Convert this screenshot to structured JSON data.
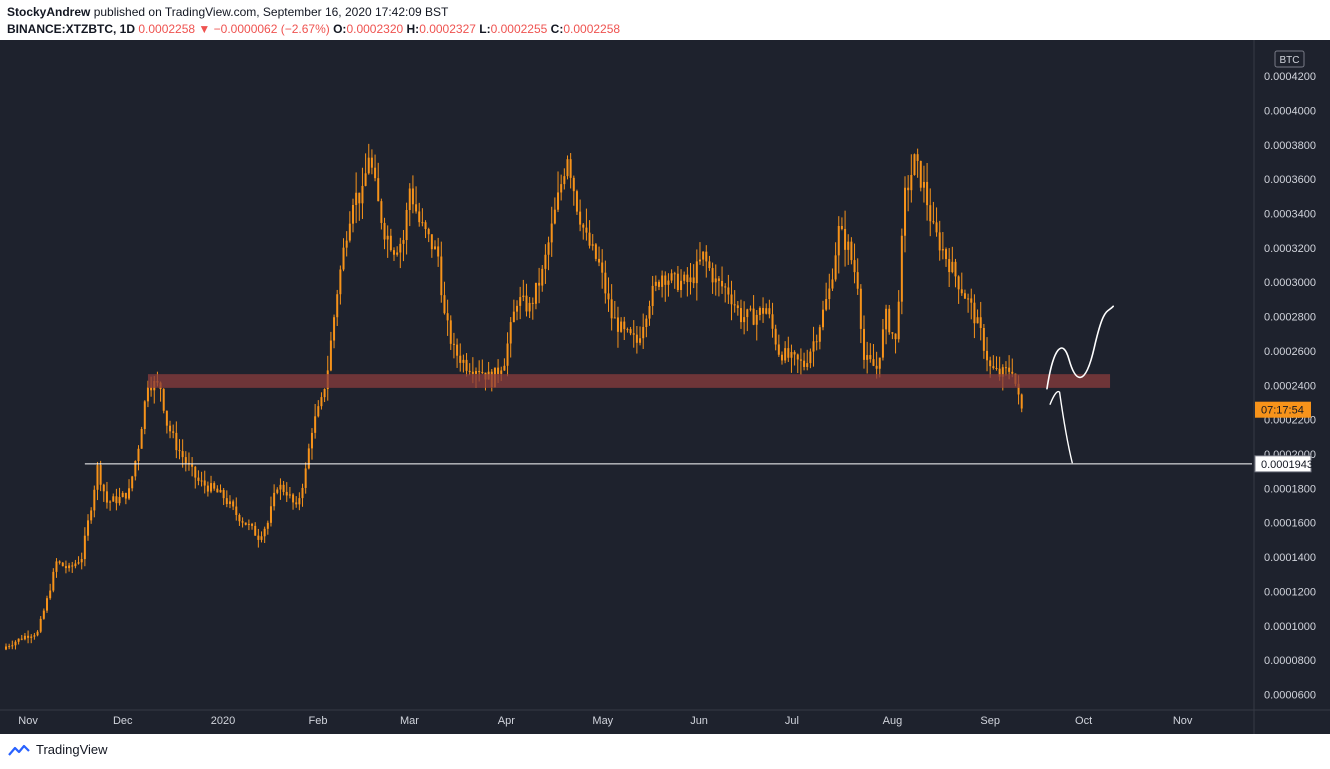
{
  "header": {
    "author": "StockyAndrew",
    "published_text": "published on TradingView.com, September 16, 2020 17:42:09 BST",
    "symbol": "BINANCE:XTZBTC, 1D",
    "last_price": "0.0002258",
    "change_arrow": "▼",
    "change": "−0.0000062 (−2.67%)",
    "o_label": "O:",
    "o_value": "0.0002320",
    "h_label": "H:",
    "h_value": "0.0002327",
    "l_label": "L:",
    "l_value": "0.0002255",
    "c_label": "C:",
    "c_value": "0.0002258"
  },
  "footer": {
    "brand": "TradingView"
  },
  "colors": {
    "background": "#1e222d",
    "candle": "#f7931a",
    "zone": "#8a3c3c",
    "line": "#ffffff",
    "axis_text": "#d1d4dc",
    "countdown_bg": "#f7931a"
  },
  "chart_data": {
    "type": "candlestick",
    "currency_label": "BTC",
    "y_tick_labels": [
      "0.0000600",
      "0.0000800",
      "0.0001000",
      "0.0001200",
      "0.0001400",
      "0.0001600",
      "0.0001800",
      "0.0002000",
      "0.0002200",
      "0.0002400",
      "0.0002600",
      "0.0002800",
      "0.0003000",
      "0.0003200",
      "0.0003400",
      "0.0003600",
      "0.0003800",
      "0.0004000",
      "0.0004200"
    ],
    "y_ticks": [
      6e-05,
      8e-05,
      0.0001,
      0.00012,
      0.00014,
      0.00016,
      0.00018,
      0.0002,
      0.00022,
      0.00024,
      0.00026,
      0.00028,
      0.0003,
      0.00032,
      0.00034,
      0.00036,
      0.00038,
      0.0004,
      0.00042
    ],
    "ylim": [
      5.45e-05,
      0.0004375
    ],
    "x_tick_labels": [
      "Nov",
      "Dec",
      "2020",
      "Feb",
      "Mar",
      "Apr",
      "May",
      "Jun",
      "Jul",
      "Aug",
      "Sep",
      "Oct",
      "Nov"
    ],
    "x_tick_dates": [
      "2019-11-01",
      "2019-12-01",
      "2020-01-01",
      "2020-02-01",
      "2020-03-01",
      "2020-04-01",
      "2020-05-01",
      "2020-06-01",
      "2020-07-01",
      "2020-08-01",
      "2020-09-01",
      "2020-10-01",
      "2020-11-01"
    ],
    "xlim": [
      "2019-10-30",
      "2020-11-28"
    ],
    "close_series": [
      {
        "date": "2019-10-30",
        "close": 8.8e-05
      },
      {
        "date": "2019-11-05",
        "close": 9.4e-05
      },
      {
        "date": "2019-11-09",
        "close": 9.6e-05
      },
      {
        "date": "2019-11-12",
        "close": 0.000115
      },
      {
        "date": "2019-11-15",
        "close": 0.000137
      },
      {
        "date": "2019-11-19",
        "close": 0.000133
      },
      {
        "date": "2019-11-23",
        "close": 0.00014
      },
      {
        "date": "2019-11-26",
        "close": 0.00017
      },
      {
        "date": "2019-11-28",
        "close": 0.000192
      },
      {
        "date": "2019-12-01",
        "close": 0.000172
      },
      {
        "date": "2019-12-05",
        "close": 0.000174
      },
      {
        "date": "2019-12-08",
        "close": 0.000178
      },
      {
        "date": "2019-12-11",
        "close": 0.000205
      },
      {
        "date": "2019-12-14",
        "close": 0.000242
      },
      {
        "date": "2019-12-18",
        "close": 0.000239
      },
      {
        "date": "2019-12-20",
        "close": 0.000218
      },
      {
        "date": "2019-12-23",
        "close": 0.000205
      },
      {
        "date": "2019-12-27",
        "close": 0.000192
      },
      {
        "date": "2019-12-30",
        "close": 0.000184
      },
      {
        "date": "2020-01-03",
        "close": 0.00018
      },
      {
        "date": "2020-01-07",
        "close": 0.000175
      },
      {
        "date": "2020-01-11",
        "close": 0.000165
      },
      {
        "date": "2020-01-15",
        "close": 0.000158
      },
      {
        "date": "2020-01-18",
        "close": 0.000152
      },
      {
        "date": "2020-01-21",
        "close": 0.00016
      },
      {
        "date": "2020-01-24",
        "close": 0.000182
      },
      {
        "date": "2020-01-27",
        "close": 0.000178
      },
      {
        "date": "2020-01-30",
        "close": 0.000168
      },
      {
        "date": "2020-02-02",
        "close": 0.00019
      },
      {
        "date": "2020-02-04",
        "close": 0.000215
      },
      {
        "date": "2020-02-07",
        "close": 0.00023
      },
      {
        "date": "2020-02-09",
        "close": 0.00025
      },
      {
        "date": "2020-02-12",
        "close": 0.000295
      },
      {
        "date": "2020-02-15",
        "close": 0.00033
      },
      {
        "date": "2020-02-17",
        "close": 0.00035
      },
      {
        "date": "2020-02-20",
        "close": 0.00035
      },
      {
        "date": "2020-02-22",
        "close": 0.000375
      },
      {
        "date": "2020-02-25",
        "close": 0.000345
      },
      {
        "date": "2020-02-27",
        "close": 0.00033
      },
      {
        "date": "2020-03-01",
        "close": 0.00032
      },
      {
        "date": "2020-03-04",
        "close": 0.000325
      },
      {
        "date": "2020-03-06",
        "close": 0.000355
      },
      {
        "date": "2020-03-09",
        "close": 0.000335
      },
      {
        "date": "2020-03-12",
        "close": 0.000325
      },
      {
        "date": "2020-03-15",
        "close": 0.000315
      },
      {
        "date": "2020-03-17",
        "close": 0.00028
      },
      {
        "date": "2020-03-20",
        "close": 0.00026
      },
      {
        "date": "2020-03-24",
        "close": 0.000252
      },
      {
        "date": "2020-03-28",
        "close": 0.00025
      },
      {
        "date": "2020-04-01",
        "close": 0.000243
      },
      {
        "date": "2020-04-05",
        "close": 0.000255
      },
      {
        "date": "2020-04-09",
        "close": 0.00029
      },
      {
        "date": "2020-04-13",
        "close": 0.000285
      },
      {
        "date": "2020-04-17",
        "close": 0.000305
      },
      {
        "date": "2020-04-21",
        "close": 0.00034
      },
      {
        "date": "2020-04-25",
        "close": 0.000375
      },
      {
        "date": "2020-04-28",
        "close": 0.000345
      },
      {
        "date": "2020-05-01",
        "close": 0.000325
      },
      {
        "date": "2020-05-05",
        "close": 0.00031
      },
      {
        "date": "2020-05-09",
        "close": 0.00028
      },
      {
        "date": "2020-05-13",
        "close": 0.00027
      },
      {
        "date": "2020-05-17",
        "close": 0.000265
      },
      {
        "date": "2020-05-21",
        "close": 0.00029
      },
      {
        "date": "2020-05-25",
        "close": 0.000305
      },
      {
        "date": "2020-05-29",
        "close": 0.0003
      },
      {
        "date": "2020-06-03",
        "close": 0.0003
      },
      {
        "date": "2020-06-07",
        "close": 0.000315
      },
      {
        "date": "2020-06-11",
        "close": 0.0003
      },
      {
        "date": "2020-06-15",
        "close": 0.000295
      },
      {
        "date": "2020-06-19",
        "close": 0.00028
      },
      {
        "date": "2020-06-23",
        "close": 0.00028
      },
      {
        "date": "2020-06-27",
        "close": 0.000285
      },
      {
        "date": "2020-07-01",
        "close": 0.00026
      },
      {
        "date": "2020-07-05",
        "close": 0.000255
      },
      {
        "date": "2020-07-09",
        "close": 0.000252
      },
      {
        "date": "2020-07-13",
        "close": 0.00027
      },
      {
        "date": "2020-07-17",
        "close": 0.000295
      },
      {
        "date": "2020-07-20",
        "close": 0.00033
      },
      {
        "date": "2020-07-23",
        "close": 0.00032
      },
      {
        "date": "2020-07-26",
        "close": 0.0003
      },
      {
        "date": "2020-07-28",
        "close": 0.000255
      },
      {
        "date": "2020-08-01",
        "close": 0.00025
      },
      {
        "date": "2020-08-04",
        "close": 0.00028
      },
      {
        "date": "2020-08-07",
        "close": 0.000265
      },
      {
        "date": "2020-08-10",
        "close": 0.00035
      },
      {
        "date": "2020-08-13",
        "close": 0.00037
      },
      {
        "date": "2020-08-16",
        "close": 0.000355
      },
      {
        "date": "2020-08-19",
        "close": 0.00033
      },
      {
        "date": "2020-08-23",
        "close": 0.000315
      },
      {
        "date": "2020-08-27",
        "close": 0.0003
      },
      {
        "date": "2020-08-31",
        "close": 0.000285
      },
      {
        "date": "2020-09-03",
        "close": 0.00027
      },
      {
        "date": "2020-09-06",
        "close": 0.00025
      },
      {
        "date": "2020-09-09",
        "close": 0.000246
      },
      {
        "date": "2020-09-13",
        "close": 0.00025
      },
      {
        "date": "2020-09-15",
        "close": 0.000232
      },
      {
        "date": "2020-09-16",
        "close": 0.0002258
      }
    ],
    "annotations": {
      "support_zone": [
        0.0002385,
        0.0002465
      ],
      "horizontal_line": 0.0001943,
      "horizontal_line_label": "0.0001943",
      "countdown_label": "07:17:54",
      "countdown_price": 0.0002258
    }
  }
}
